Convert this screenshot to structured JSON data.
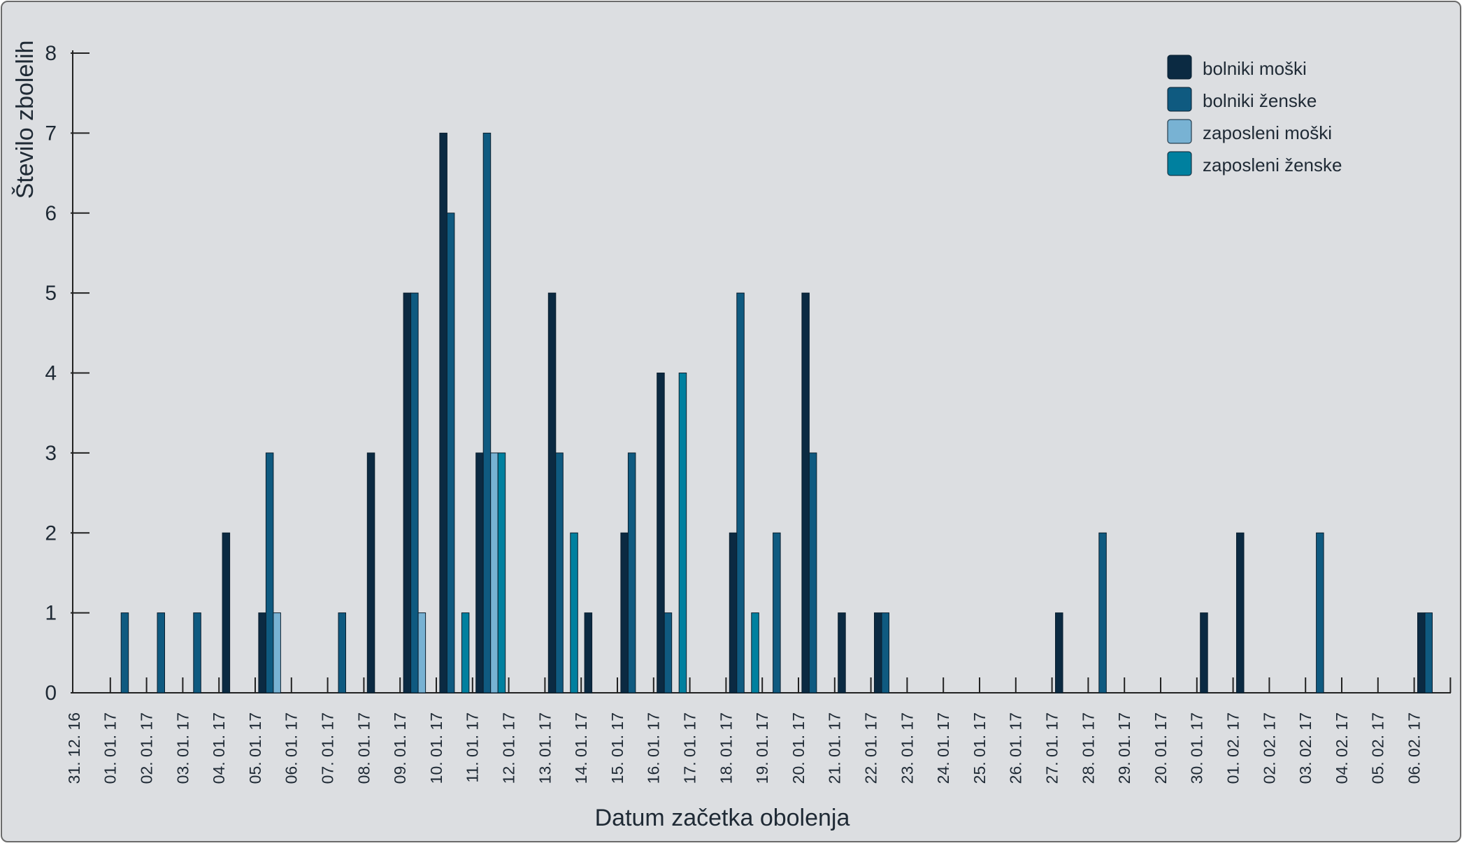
{
  "chart_data": {
    "type": "bar",
    "title": "",
    "xlabel": "Datum začetka obolenja",
    "ylabel": "Število zbolelih",
    "ylim": [
      0,
      8
    ],
    "yticks": [
      0,
      1,
      2,
      3,
      4,
      5,
      6,
      7,
      8
    ],
    "grid": false,
    "legend_position": "top-right",
    "categories": [
      "31. 12. 16",
      "01. 01. 17",
      "02. 01. 17",
      "03. 01. 17",
      "04. 01. 17",
      "05. 01. 17",
      "06. 01. 17",
      "07. 01. 17",
      "08. 01. 17",
      "09. 01. 17",
      "10. 01. 17",
      "11. 01. 17",
      "12. 01. 17",
      "13. 01. 17",
      "14. 01. 17",
      "15. 01. 17",
      "16. 01. 17",
      "17. 01. 17",
      "18. 01. 17",
      "19. 01. 17",
      "20. 01. 17",
      "21. 01. 17",
      "22. 01. 17",
      "23. 01. 17",
      "24. 01. 17",
      "25. 01. 17",
      "26. 01. 17",
      "27. 01. 17",
      "28. 01. 17",
      "29. 01. 17",
      "20. 01. 17",
      "30. 01. 17",
      "01. 02. 17",
      "02. 02. 17",
      "03. 02. 17",
      "04. 02. 17",
      "05. 02. 17",
      "06. 02. 17"
    ],
    "series": [
      {
        "name": "bolniki moški",
        "color": "#0b2a42",
        "values": [
          0,
          0,
          0,
          0,
          2,
          1,
          0,
          0,
          3,
          5,
          7,
          3,
          0,
          5,
          1,
          2,
          4,
          0,
          2,
          0,
          5,
          1,
          1,
          0,
          0,
          0,
          0,
          1,
          0,
          0,
          0,
          1,
          2,
          0,
          0,
          0,
          0,
          1
        ]
      },
      {
        "name": "bolniki ženske",
        "color": "#0f5a80",
        "values": [
          0,
          1,
          1,
          1,
          0,
          3,
          0,
          1,
          0,
          5,
          6,
          7,
          0,
          3,
          0,
          3,
          1,
          0,
          5,
          2,
          3,
          0,
          1,
          0,
          0,
          0,
          0,
          0,
          2,
          0,
          0,
          0,
          0,
          0,
          2,
          0,
          0,
          1
        ]
      },
      {
        "name": "zaposleni moški",
        "color": "#78b2d3",
        "values": [
          0,
          0,
          0,
          0,
          0,
          1,
          0,
          0,
          0,
          1,
          0,
          3,
          0,
          0,
          0,
          0,
          0,
          0,
          0,
          0,
          0,
          0,
          0,
          0,
          0,
          0,
          0,
          0,
          0,
          0,
          0,
          0,
          0,
          0,
          0,
          0,
          0,
          0
        ]
      },
      {
        "name": "zaposleni ženske",
        "color": "#00809f",
        "values": [
          0,
          0,
          0,
          0,
          0,
          0,
          0,
          0,
          0,
          0,
          1,
          3,
          0,
          2,
          0,
          0,
          4,
          0,
          1,
          0,
          0,
          0,
          0,
          0,
          0,
          0,
          0,
          0,
          0,
          0,
          0,
          0,
          0,
          0,
          0,
          0,
          0,
          0
        ]
      }
    ]
  }
}
